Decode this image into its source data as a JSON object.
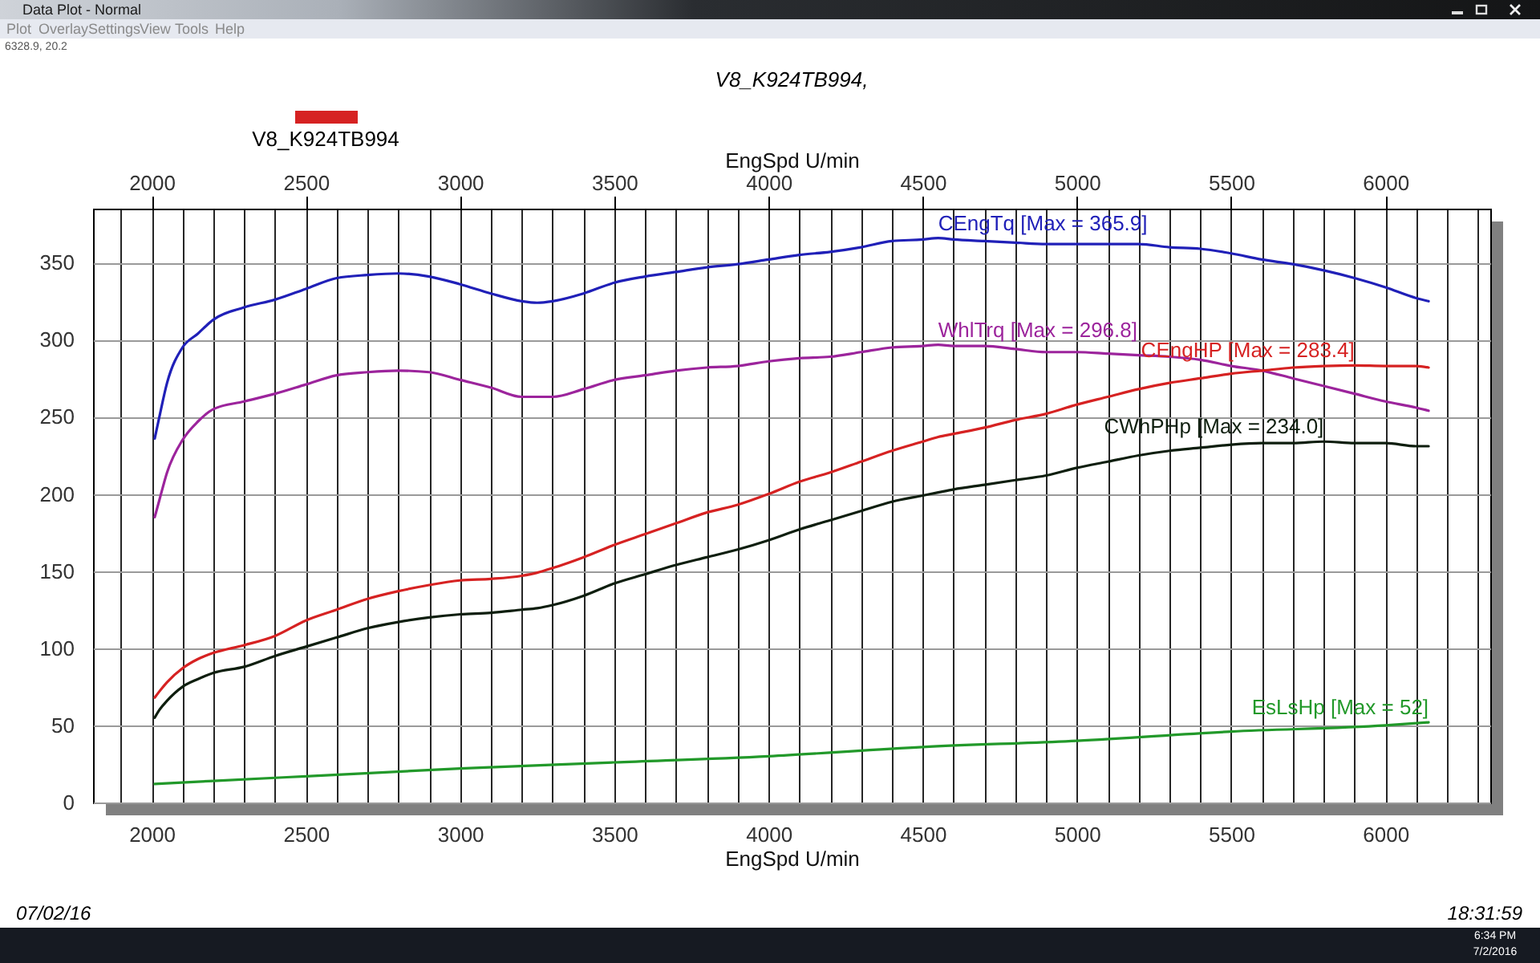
{
  "chart_data": {
    "type": "line",
    "subtitle": "V8_K924TB994,",
    "xlabel": "EngSpd U/min",
    "x2label": "EngSpd U/min",
    "annotations": [
      "Data Plot - Normal",
      "Plot",
      "Overlay",
      "Settings",
      "View",
      "Tools",
      "Help",
      "6328.9, 20.2",
      "V8_K924TB994",
      "07/02/16",
      "18:31:59",
      "6:34 PM",
      "7/2/2016"
    ],
    "x": [
      2010,
      2025,
      2050,
      2100,
      2150,
      2200,
      2300,
      2400,
      2500,
      2600,
      2700,
      2800,
      2900,
      3000,
      3100,
      3200,
      3250,
      3300,
      3400,
      3500,
      3600,
      3700,
      3800,
      3900,
      4000,
      4100,
      4200,
      4300,
      4400,
      4500,
      4550,
      4600,
      4700,
      4800,
      4900,
      5000,
      5100,
      5200,
      5300,
      5400,
      5500,
      5600,
      5700,
      5800,
      5900,
      6000,
      6100,
      6140
    ],
    "series": [
      {
        "name": "CEngTq [Max = 365.9]",
        "color": "#2020b8",
        "values": [
          236,
          250,
          272,
          295,
          304,
          313,
          321,
          326,
          333,
          340,
          342,
          343,
          341,
          336,
          330,
          325,
          324,
          325,
          330,
          337,
          341,
          344,
          347,
          349,
          352,
          355,
          357,
          360,
          364,
          365,
          365.9,
          365,
          364,
          363,
          362,
          362,
          362,
          362,
          360,
          359,
          356,
          352,
          349,
          345,
          340,
          334,
          327,
          325
        ]
      },
      {
        "name": "WhlTrq [Max = 296.8]",
        "color": "#9c249c",
        "values": [
          185,
          196,
          214,
          235,
          247,
          255,
          260,
          265,
          271,
          277,
          279,
          280,
          279,
          274,
          269,
          263,
          263,
          263,
          268,
          274,
          277,
          280,
          282,
          283,
          286,
          288,
          289,
          292,
          295,
          296,
          296.8,
          296,
          296,
          294,
          292,
          292,
          291,
          290,
          289,
          287,
          283,
          280,
          275,
          270,
          265,
          260,
          256,
          254
        ]
      },
      {
        "name": "CEngHP [Max = 283.4]",
        "color": "#d62222",
        "values": [
          68,
          72,
          78,
          87,
          93,
          97,
          102,
          108,
          118,
          125,
          132,
          137,
          141,
          144,
          145,
          147,
          149,
          152,
          159,
          167,
          174,
          181,
          188,
          193,
          200,
          208,
          214,
          221,
          228,
          234,
          237,
          239,
          243,
          248,
          252,
          258,
          263,
          268,
          272,
          275,
          278,
          280,
          282,
          283,
          283.4,
          283,
          283,
          282
        ]
      },
      {
        "name": "CWhPHp [Max = 234.0]",
        "color": "#0e1e0e",
        "values": [
          55,
          60,
          66,
          75,
          80,
          84,
          88,
          95,
          101,
          107,
          113,
          117,
          120,
          122,
          123,
          125,
          126,
          128,
          134,
          142,
          148,
          154,
          159,
          164,
          170,
          177,
          183,
          189,
          195,
          199,
          201,
          203,
          206,
          209,
          212,
          217,
          221,
          225,
          228,
          230,
          232,
          233,
          233,
          234.0,
          233,
          233,
          231,
          231
        ]
      },
      {
        "name": "EsLsHp [Max = 52]",
        "color": "#22992a",
        "x": [
          2010,
          2200,
          2500,
          3000,
          3500,
          4000,
          4500,
          5000,
          5500,
          6000,
          6140
        ],
        "values": [
          12,
          14,
          17,
          22,
          26,
          30,
          36,
          40,
          46,
          50,
          52
        ]
      }
    ],
    "xlim": [
      1810,
      6340
    ],
    "xticks": [
      {
        "value": 1900,
        "label": null
      },
      2000,
      {
        "value": 2100,
        "label": null
      },
      {
        "value": 2200,
        "label": null
      },
      {
        "value": 2300,
        "label": null
      },
      {
        "value": 2400,
        "label": null
      },
      2500,
      {
        "value": 2600,
        "label": null
      },
      {
        "value": 2700,
        "label": null
      },
      {
        "value": 2800,
        "label": null
      },
      {
        "value": 2900,
        "label": null
      },
      3000,
      {
        "value": 3100,
        "label": null
      },
      {
        "value": 3200,
        "label": null
      },
      {
        "value": 3300,
        "label": null
      },
      {
        "value": 3400,
        "label": null
      },
      3500,
      {
        "value": 3600,
        "label": null
      },
      {
        "value": 3700,
        "label": null
      },
      {
        "value": 3800,
        "label": null
      },
      {
        "value": 3900,
        "label": null
      },
      4000,
      {
        "value": 4100,
        "label": null
      },
      {
        "value": 4200,
        "label": null
      },
      {
        "value": 4300,
        "label": null
      },
      {
        "value": 4400,
        "label": null
      },
      4500,
      {
        "value": 4600,
        "label": null
      },
      {
        "value": 4700,
        "label": null
      },
      {
        "value": 4800,
        "label": null
      },
      {
        "value": 4900,
        "label": null
      },
      5000,
      {
        "value": 5100,
        "label": null
      },
      {
        "value": 5200,
        "label": null
      },
      {
        "value": 5300,
        "label": null
      },
      {
        "value": 5400,
        "label": null
      },
      5500,
      {
        "value": 5600,
        "label": null
      },
      {
        "value": 5700,
        "label": null
      },
      {
        "value": 5800,
        "label": null
      },
      {
        "value": 5900,
        "label": null
      },
      6000,
      {
        "value": 6100,
        "label": null
      },
      {
        "value": 6200,
        "label": null
      },
      {
        "value": 6300,
        "label": null
      }
    ],
    "x2lim": [
      1810,
      6340
    ],
    "x2ticks": [
      2000,
      2500,
      3000,
      3500,
      4000,
      4500,
      5000,
      5500,
      6000
    ],
    "ylim": [
      0,
      385
    ],
    "yticks": [
      0,
      50,
      100,
      150,
      200,
      250,
      300,
      350
    ],
    "grid": true
  }
}
